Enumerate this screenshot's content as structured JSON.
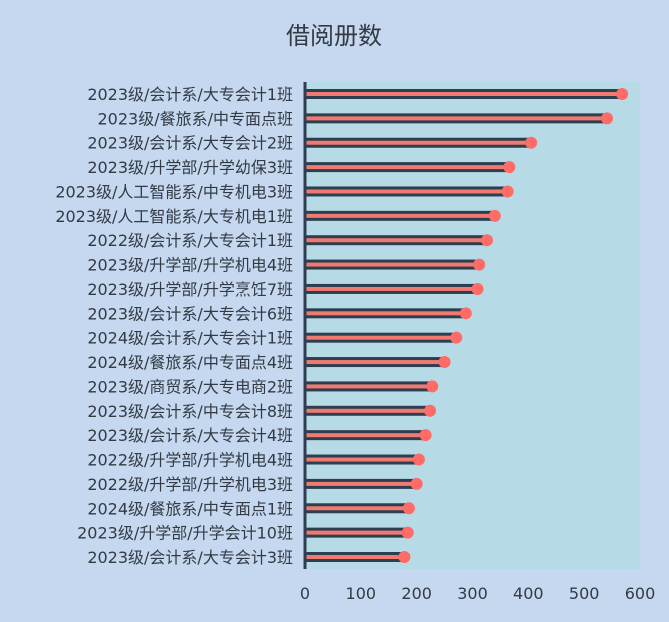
{
  "colors": {
    "background": "#c5d8ef",
    "plot_area": "#b6dbe6",
    "bar_dark": "#2d3e50",
    "bar_accent": "#f07a70",
    "marker": "#ff6b66",
    "axis": "#2d3e50",
    "text": "#333a44"
  },
  "chart_data": {
    "type": "bar",
    "orientation": "horizontal",
    "title": "借阅册数",
    "xlabel": "",
    "ylabel": "",
    "xlim": [
      0,
      600
    ],
    "xticks": [
      0,
      100,
      200,
      300,
      400,
      500,
      600
    ],
    "grid": false,
    "legend": "none",
    "categories": [
      "2023级/会计系/大专会计1班",
      "2023级/餐旅系/中专面点班",
      "2023级/会计系/大专会计2班",
      "2023级/升学部/升学幼保3班",
      "2023级/人工智能系/中专机电3班",
      "2023级/人工智能系/大专机电1班",
      "2022级/会计系/大专会计1班",
      "2023级/升学部/升学机电4班",
      "2023级/升学部/升学烹饪7班",
      "2023级/会计系/大专会计6班",
      "2024级/会计系/大专会计1班",
      "2024级/餐旅系/中专面点4班",
      "2023级/商贸系/大专电商2班",
      "2023级/会计系/中专会计8班",
      "2023级/会计系/大专会计4班",
      "2022级/升学部/升学机电4班",
      "2022级/升学部/升学机电3班",
      "2024级/餐旅系/中专面点1班",
      "2023级/升学部/升学会计10班",
      "2023级/会计系/大专会计3班"
    ],
    "values": [
      568,
      541,
      405,
      366,
      363,
      340,
      326,
      312,
      309,
      288,
      271,
      250,
      228,
      224,
      216,
      204,
      200,
      186,
      184,
      178
    ]
  }
}
